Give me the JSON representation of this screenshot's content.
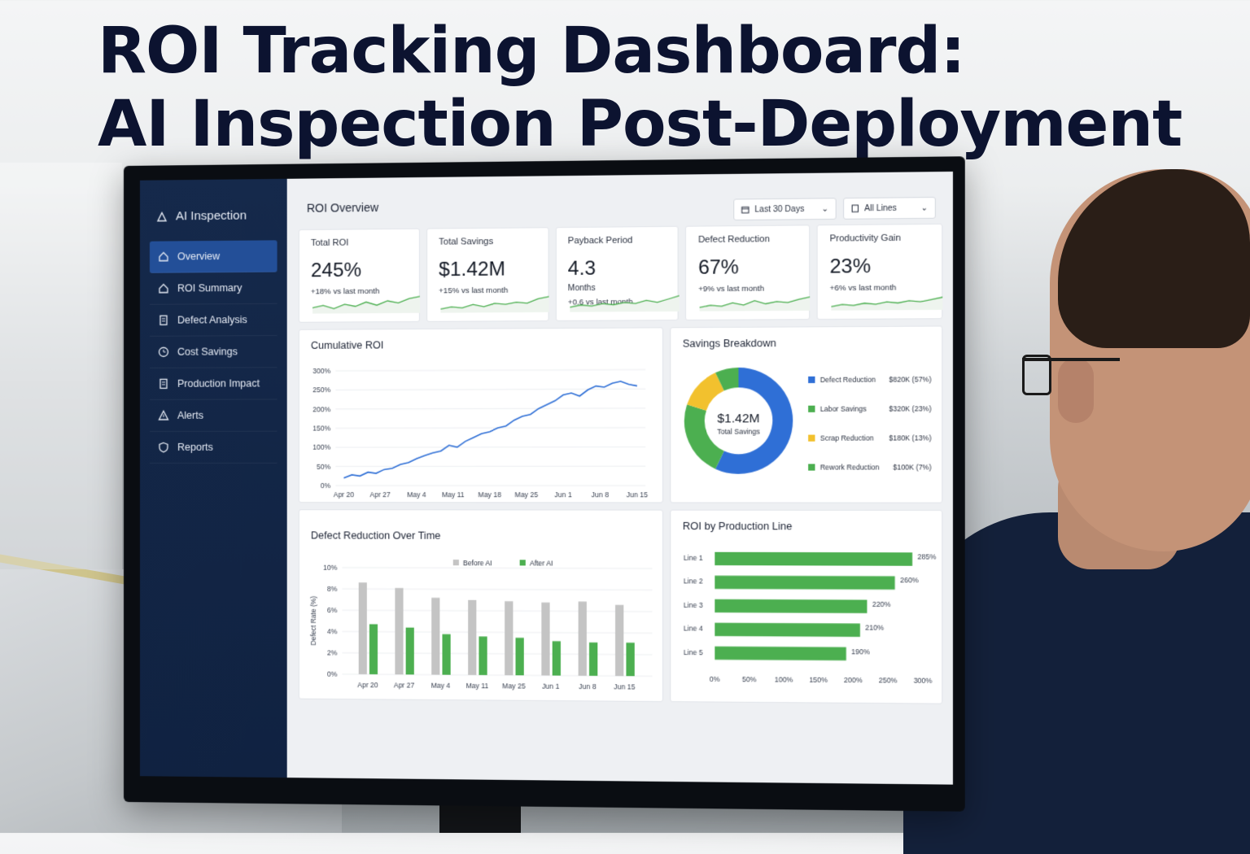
{
  "headline": {
    "line1": "ROI Tracking Dashboard:",
    "line2": "AI Inspection Post-Deployment"
  },
  "sidebar": {
    "brand": "AI Inspection",
    "items": [
      {
        "label": "Overview",
        "icon": "home-icon",
        "active": true
      },
      {
        "label": "ROI Summary",
        "icon": "home-icon"
      },
      {
        "label": "Defect Analysis",
        "icon": "document-icon"
      },
      {
        "label": "Cost Savings",
        "icon": "clock-icon"
      },
      {
        "label": "Production Impact",
        "icon": "document-icon"
      },
      {
        "label": "Alerts",
        "icon": "warning-icon"
      },
      {
        "label": "Reports",
        "icon": "shield-icon"
      }
    ]
  },
  "main": {
    "title": "ROI Overview",
    "filters": {
      "date": "Last 30 Days",
      "lines": "All Lines"
    },
    "kpis": [
      {
        "label": "Total ROI",
        "value": "245%",
        "unit": "",
        "delta": "+18% vs last month"
      },
      {
        "label": "Total Savings",
        "value": "$1.42M",
        "unit": "",
        "delta": "+15% vs last month"
      },
      {
        "label": "Payback Period",
        "value": "4.3",
        "unit": "Months",
        "delta": "+0.6 vs last month"
      },
      {
        "label": "Defect Reduction",
        "value": "67%",
        "unit": "",
        "delta": "+9% vs last month"
      },
      {
        "label": "Productivity Gain",
        "value": "23%",
        "unit": "",
        "delta": "+6% vs last month"
      }
    ]
  },
  "colors": {
    "accent": "#2f6fd6",
    "green": "#4caf50",
    "yellow": "#f2c12e",
    "gray": "#c4c4c4",
    "sidebar": "#15294b"
  },
  "chart_data": [
    {
      "type": "line",
      "title": "Cumulative ROI",
      "x_ticks": [
        "Apr 20",
        "Apr 27",
        "May 4",
        "May 11",
        "May 18",
        "May 25",
        "Jun 1",
        "Jun 8",
        "Jun 15"
      ],
      "y_ticks": [
        "0%",
        "50%",
        "100%",
        "150%",
        "200%",
        "250%",
        "300%"
      ],
      "ylim": [
        0,
        300
      ],
      "y_unit": "%",
      "values": [
        20,
        28,
        25,
        35,
        32,
        42,
        45,
        55,
        60,
        70,
        78,
        85,
        90,
        105,
        100,
        115,
        125,
        135,
        140,
        150,
        155,
        170,
        180,
        185,
        200,
        210,
        220,
        235,
        240,
        232,
        248,
        258,
        255,
        265,
        270,
        262,
        258
      ]
    },
    {
      "type": "pie",
      "title": "Savings Breakdown",
      "center_value": "$1.42M",
      "center_label": "Total Savings",
      "slices": [
        {
          "label": "Defect Reduction",
          "amount": "$820K (57%)",
          "value": 57,
          "color": "#2f6fd6"
        },
        {
          "label": "Labor Savings",
          "amount": "$320K (23%)",
          "value": 23,
          "color": "#4caf50"
        },
        {
          "label": "Scrap Reduction",
          "amount": "$180K (13%)",
          "value": 13,
          "color": "#f2c12e"
        },
        {
          "label": "Rework Reduction",
          "amount": "$100K (7%)",
          "value": 7,
          "color": "#4caf50"
        }
      ]
    },
    {
      "type": "bar",
      "title": "Defect Reduction Over Time",
      "ylabel": "Defect Rate (%)",
      "categories": [
        "Apr 20",
        "Apr 27",
        "May 4",
        "May 11",
        "May 25",
        "Jun 1",
        "Jun 8",
        "Jun 15"
      ],
      "y_ticks": [
        "0%",
        "2%",
        "4%",
        "6%",
        "8%",
        "10%"
      ],
      "ylim": [
        0,
        10
      ],
      "series": [
        {
          "name": "Before AI",
          "values": [
            8.6,
            8.1,
            7.2,
            7.0,
            6.9,
            6.8,
            6.9,
            6.6
          ]
        },
        {
          "name": "After AI",
          "values": [
            4.7,
            4.4,
            3.8,
            3.6,
            3.5,
            3.2,
            3.1,
            3.1
          ]
        }
      ]
    },
    {
      "type": "bar",
      "orientation": "horizontal",
      "title": "ROI by Production Line",
      "categories": [
        "Line 1",
        "Line 2",
        "Line 3",
        "Line 4",
        "Line 5"
      ],
      "values": [
        285,
        260,
        220,
        210,
        190
      ],
      "value_labels": [
        "285%",
        "260%",
        "220%",
        "210%",
        "190%"
      ],
      "x_ticks": [
        "0%",
        "50%",
        "100%",
        "150%",
        "200%",
        "250%",
        "300%"
      ],
      "xlim": [
        0,
        300
      ]
    }
  ]
}
